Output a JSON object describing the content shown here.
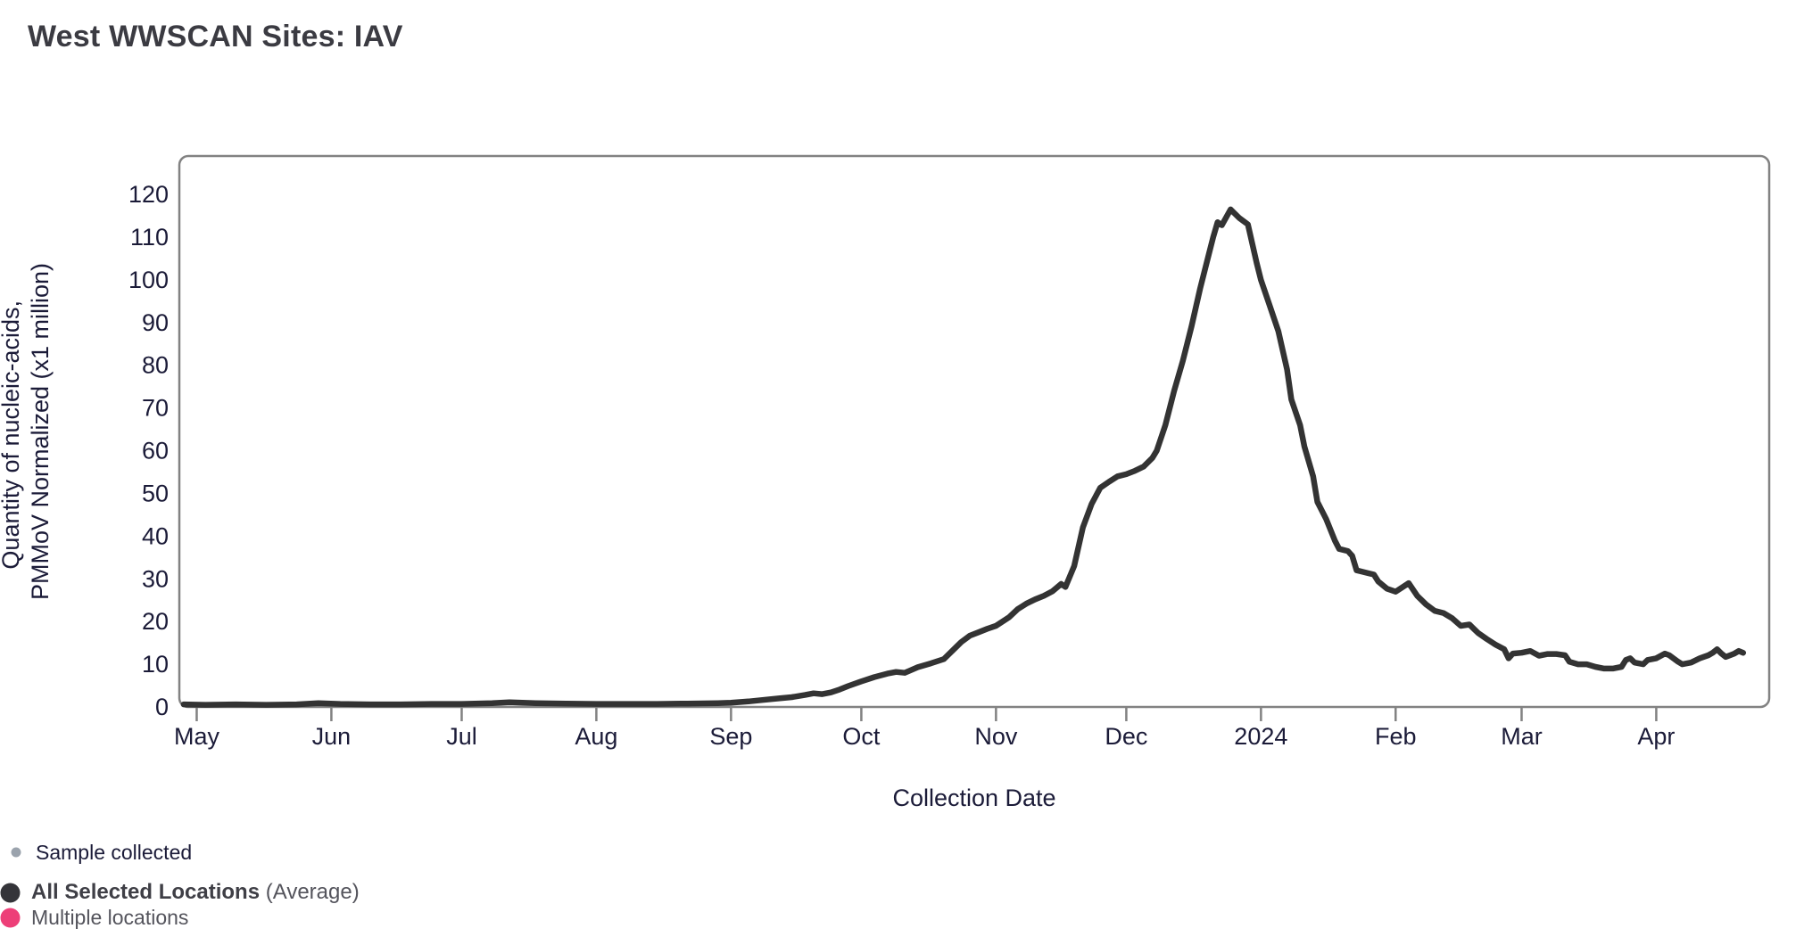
{
  "page": {
    "title": "West WWSCAN Sites: IAV",
    "background": "#ffffff"
  },
  "legend": {
    "items": [
      {
        "label": "Sample collected",
        "dot_color": "#9ba3ad",
        "dot_size": "small"
      },
      {
        "label": "All Selected Locations",
        "suffix": " (Average)",
        "dot_color": "#343439",
        "dot_size": "large"
      },
      {
        "label": "Multiple locations",
        "dot_color": "#ED3F78",
        "dot_size": "large"
      }
    ]
  },
  "chart_data": {
    "type": "line",
    "title": "West WWSCAN Sites: IAV",
    "xlabel": "Collection Date",
    "ylabel": "Quantity of nucleic-acids, PMMoV Normalized (x1 million)",
    "ylabel_lines": [
      "Quantity of nucleic-acids,",
      "PMMoV Normalized (x1 million)"
    ],
    "grid": false,
    "legend_position": "bottom-left",
    "line_color": "#333333",
    "frame_color": "#828282",
    "x_domain": [
      "2023-04-27",
      "2024-04-27"
    ],
    "ylim": [
      0,
      129
    ],
    "yticks": [
      0,
      10,
      20,
      30,
      40,
      50,
      60,
      70,
      80,
      90,
      100,
      110,
      120
    ],
    "xticks": [
      {
        "date": "2023-05-01",
        "label": "May"
      },
      {
        "date": "2023-06-01",
        "label": "Jun"
      },
      {
        "date": "2023-07-01",
        "label": "Jul"
      },
      {
        "date": "2023-08-01",
        "label": "Aug"
      },
      {
        "date": "2023-09-01",
        "label": "Sep"
      },
      {
        "date": "2023-10-01",
        "label": "Oct"
      },
      {
        "date": "2023-11-01",
        "label": "Nov"
      },
      {
        "date": "2023-12-01",
        "label": "Dec"
      },
      {
        "date": "2024-01-01",
        "label": "2024"
      },
      {
        "date": "2024-02-01",
        "label": "Feb"
      },
      {
        "date": "2024-03-01",
        "label": "Mar"
      },
      {
        "date": "2024-04-01",
        "label": "Apr"
      }
    ],
    "series": [
      {
        "name": "All Selected Locations (Average)",
        "points": [
          [
            "2023-04-28",
            0.6
          ],
          [
            "2023-05-03",
            0.5
          ],
          [
            "2023-05-10",
            0.6
          ],
          [
            "2023-05-17",
            0.5
          ],
          [
            "2023-05-24",
            0.6
          ],
          [
            "2023-05-29",
            0.9
          ],
          [
            "2023-06-03",
            0.7
          ],
          [
            "2023-06-10",
            0.6
          ],
          [
            "2023-06-17",
            0.6
          ],
          [
            "2023-06-24",
            0.7
          ],
          [
            "2023-07-01",
            0.7
          ],
          [
            "2023-07-08",
            0.9
          ],
          [
            "2023-07-12",
            1.1
          ],
          [
            "2023-07-18",
            0.9
          ],
          [
            "2023-07-25",
            0.8
          ],
          [
            "2023-08-01",
            0.7
          ],
          [
            "2023-08-08",
            0.7
          ],
          [
            "2023-08-15",
            0.7
          ],
          [
            "2023-08-22",
            0.8
          ],
          [
            "2023-08-29",
            0.9
          ],
          [
            "2023-09-01",
            1.0
          ],
          [
            "2023-09-05",
            1.3
          ],
          [
            "2023-09-08",
            1.6
          ],
          [
            "2023-09-12",
            2.0
          ],
          [
            "2023-09-15",
            2.3
          ],
          [
            "2023-09-18",
            2.8
          ],
          [
            "2023-09-20",
            3.2
          ],
          [
            "2023-09-22",
            3.0
          ],
          [
            "2023-09-24",
            3.4
          ],
          [
            "2023-09-26",
            4.1
          ],
          [
            "2023-09-28",
            4.9
          ],
          [
            "2023-10-01",
            6.0
          ],
          [
            "2023-10-04",
            7.0
          ],
          [
            "2023-10-07",
            7.8
          ],
          [
            "2023-10-09",
            8.2
          ],
          [
            "2023-10-11",
            8.0
          ],
          [
            "2023-10-14",
            9.3
          ],
          [
            "2023-10-17",
            10.2
          ],
          [
            "2023-10-20",
            11.2
          ],
          [
            "2023-10-23",
            14.2
          ],
          [
            "2023-10-24",
            15.2
          ],
          [
            "2023-10-26",
            16.7
          ],
          [
            "2023-10-28",
            17.5
          ],
          [
            "2023-10-30",
            18.3
          ],
          [
            "2023-11-01",
            19.0
          ],
          [
            "2023-11-04",
            21.0
          ],
          [
            "2023-11-06",
            22.9
          ],
          [
            "2023-11-08",
            24.2
          ],
          [
            "2023-11-10",
            25.2
          ],
          [
            "2023-11-12",
            26.0
          ],
          [
            "2023-11-14",
            27.1
          ],
          [
            "2023-11-16",
            28.8
          ],
          [
            "2023-11-17",
            28.1
          ],
          [
            "2023-11-19",
            33.0
          ],
          [
            "2023-11-21",
            42.0
          ],
          [
            "2023-11-23",
            47.5
          ],
          [
            "2023-11-25",
            51.3
          ],
          [
            "2023-11-27",
            52.7
          ],
          [
            "2023-11-29",
            54.0
          ],
          [
            "2023-12-01",
            54.5
          ],
          [
            "2023-12-03",
            55.3
          ],
          [
            "2023-12-05",
            56.3
          ],
          [
            "2023-12-07",
            58.3
          ],
          [
            "2023-12-08",
            60.0
          ],
          [
            "2023-12-10",
            66.0
          ],
          [
            "2023-12-12",
            74.0
          ],
          [
            "2023-12-14",
            81.0
          ],
          [
            "2023-12-16",
            89.0
          ],
          [
            "2023-12-18",
            98.0
          ],
          [
            "2023-12-20",
            106.0
          ],
          [
            "2023-12-21",
            110.0
          ],
          [
            "2023-12-22",
            113.5
          ],
          [
            "2023-12-23",
            112.8
          ],
          [
            "2023-12-25",
            116.5
          ],
          [
            "2023-12-27",
            114.5
          ],
          [
            "2023-12-29",
            113.0
          ],
          [
            "2023-12-31",
            104.0
          ],
          [
            "2024-01-01",
            100.0
          ],
          [
            "2024-01-03",
            94.0
          ],
          [
            "2024-01-05",
            88.0
          ],
          [
            "2024-01-07",
            79.0
          ],
          [
            "2024-01-08",
            72.0
          ],
          [
            "2024-01-10",
            66.0
          ],
          [
            "2024-01-11",
            61.0
          ],
          [
            "2024-01-13",
            54.0
          ],
          [
            "2024-01-14",
            48.0
          ],
          [
            "2024-01-16",
            44.0
          ],
          [
            "2024-01-18",
            39.0
          ],
          [
            "2024-01-19",
            37.0
          ],
          [
            "2024-01-21",
            36.5
          ],
          [
            "2024-01-22",
            35.4
          ],
          [
            "2024-01-23",
            32.0
          ],
          [
            "2024-01-25",
            31.5
          ],
          [
            "2024-01-27",
            31.0
          ],
          [
            "2024-01-28",
            29.4
          ],
          [
            "2024-01-30",
            27.7
          ],
          [
            "2024-02-01",
            27.0
          ],
          [
            "2024-02-04",
            29.0
          ],
          [
            "2024-02-06",
            26.0
          ],
          [
            "2024-02-08",
            24.0
          ],
          [
            "2024-02-10",
            22.5
          ],
          [
            "2024-02-12",
            22.0
          ],
          [
            "2024-02-14",
            20.8
          ],
          [
            "2024-02-16",
            19.0
          ],
          [
            "2024-02-18",
            19.3
          ],
          [
            "2024-02-20",
            17.3
          ],
          [
            "2024-02-22",
            15.9
          ],
          [
            "2024-02-24",
            14.6
          ],
          [
            "2024-02-26",
            13.5
          ],
          [
            "2024-02-27",
            11.4
          ],
          [
            "2024-02-28",
            12.5
          ],
          [
            "2024-03-01",
            12.7
          ],
          [
            "2024-03-03",
            13.1
          ],
          [
            "2024-03-05",
            12.0
          ],
          [
            "2024-03-07",
            12.4
          ],
          [
            "2024-03-09",
            12.4
          ],
          [
            "2024-03-11",
            12.1
          ],
          [
            "2024-03-12",
            10.6
          ],
          [
            "2024-03-14",
            10.0
          ],
          [
            "2024-03-16",
            10.0
          ],
          [
            "2024-03-18",
            9.4
          ],
          [
            "2024-03-20",
            9.0
          ],
          [
            "2024-03-22",
            9.0
          ],
          [
            "2024-03-24",
            9.4
          ],
          [
            "2024-03-25",
            11.0
          ],
          [
            "2024-03-26",
            11.4
          ],
          [
            "2024-03-27",
            10.4
          ],
          [
            "2024-03-29",
            10.0
          ],
          [
            "2024-03-30",
            11.0
          ],
          [
            "2024-04-01",
            11.4
          ],
          [
            "2024-04-03",
            12.5
          ],
          [
            "2024-04-04",
            12.1
          ],
          [
            "2024-04-06",
            10.6
          ],
          [
            "2024-04-07",
            10.0
          ],
          [
            "2024-04-09",
            10.4
          ],
          [
            "2024-04-11",
            11.4
          ],
          [
            "2024-04-13",
            12.1
          ],
          [
            "2024-04-14",
            12.7
          ],
          [
            "2024-04-15",
            13.5
          ],
          [
            "2024-04-16",
            12.5
          ],
          [
            "2024-04-17",
            11.7
          ],
          [
            "2024-04-18",
            12.1
          ],
          [
            "2024-04-19",
            12.5
          ],
          [
            "2024-04-20",
            13.1
          ],
          [
            "2024-04-21",
            12.7
          ]
        ]
      }
    ]
  }
}
